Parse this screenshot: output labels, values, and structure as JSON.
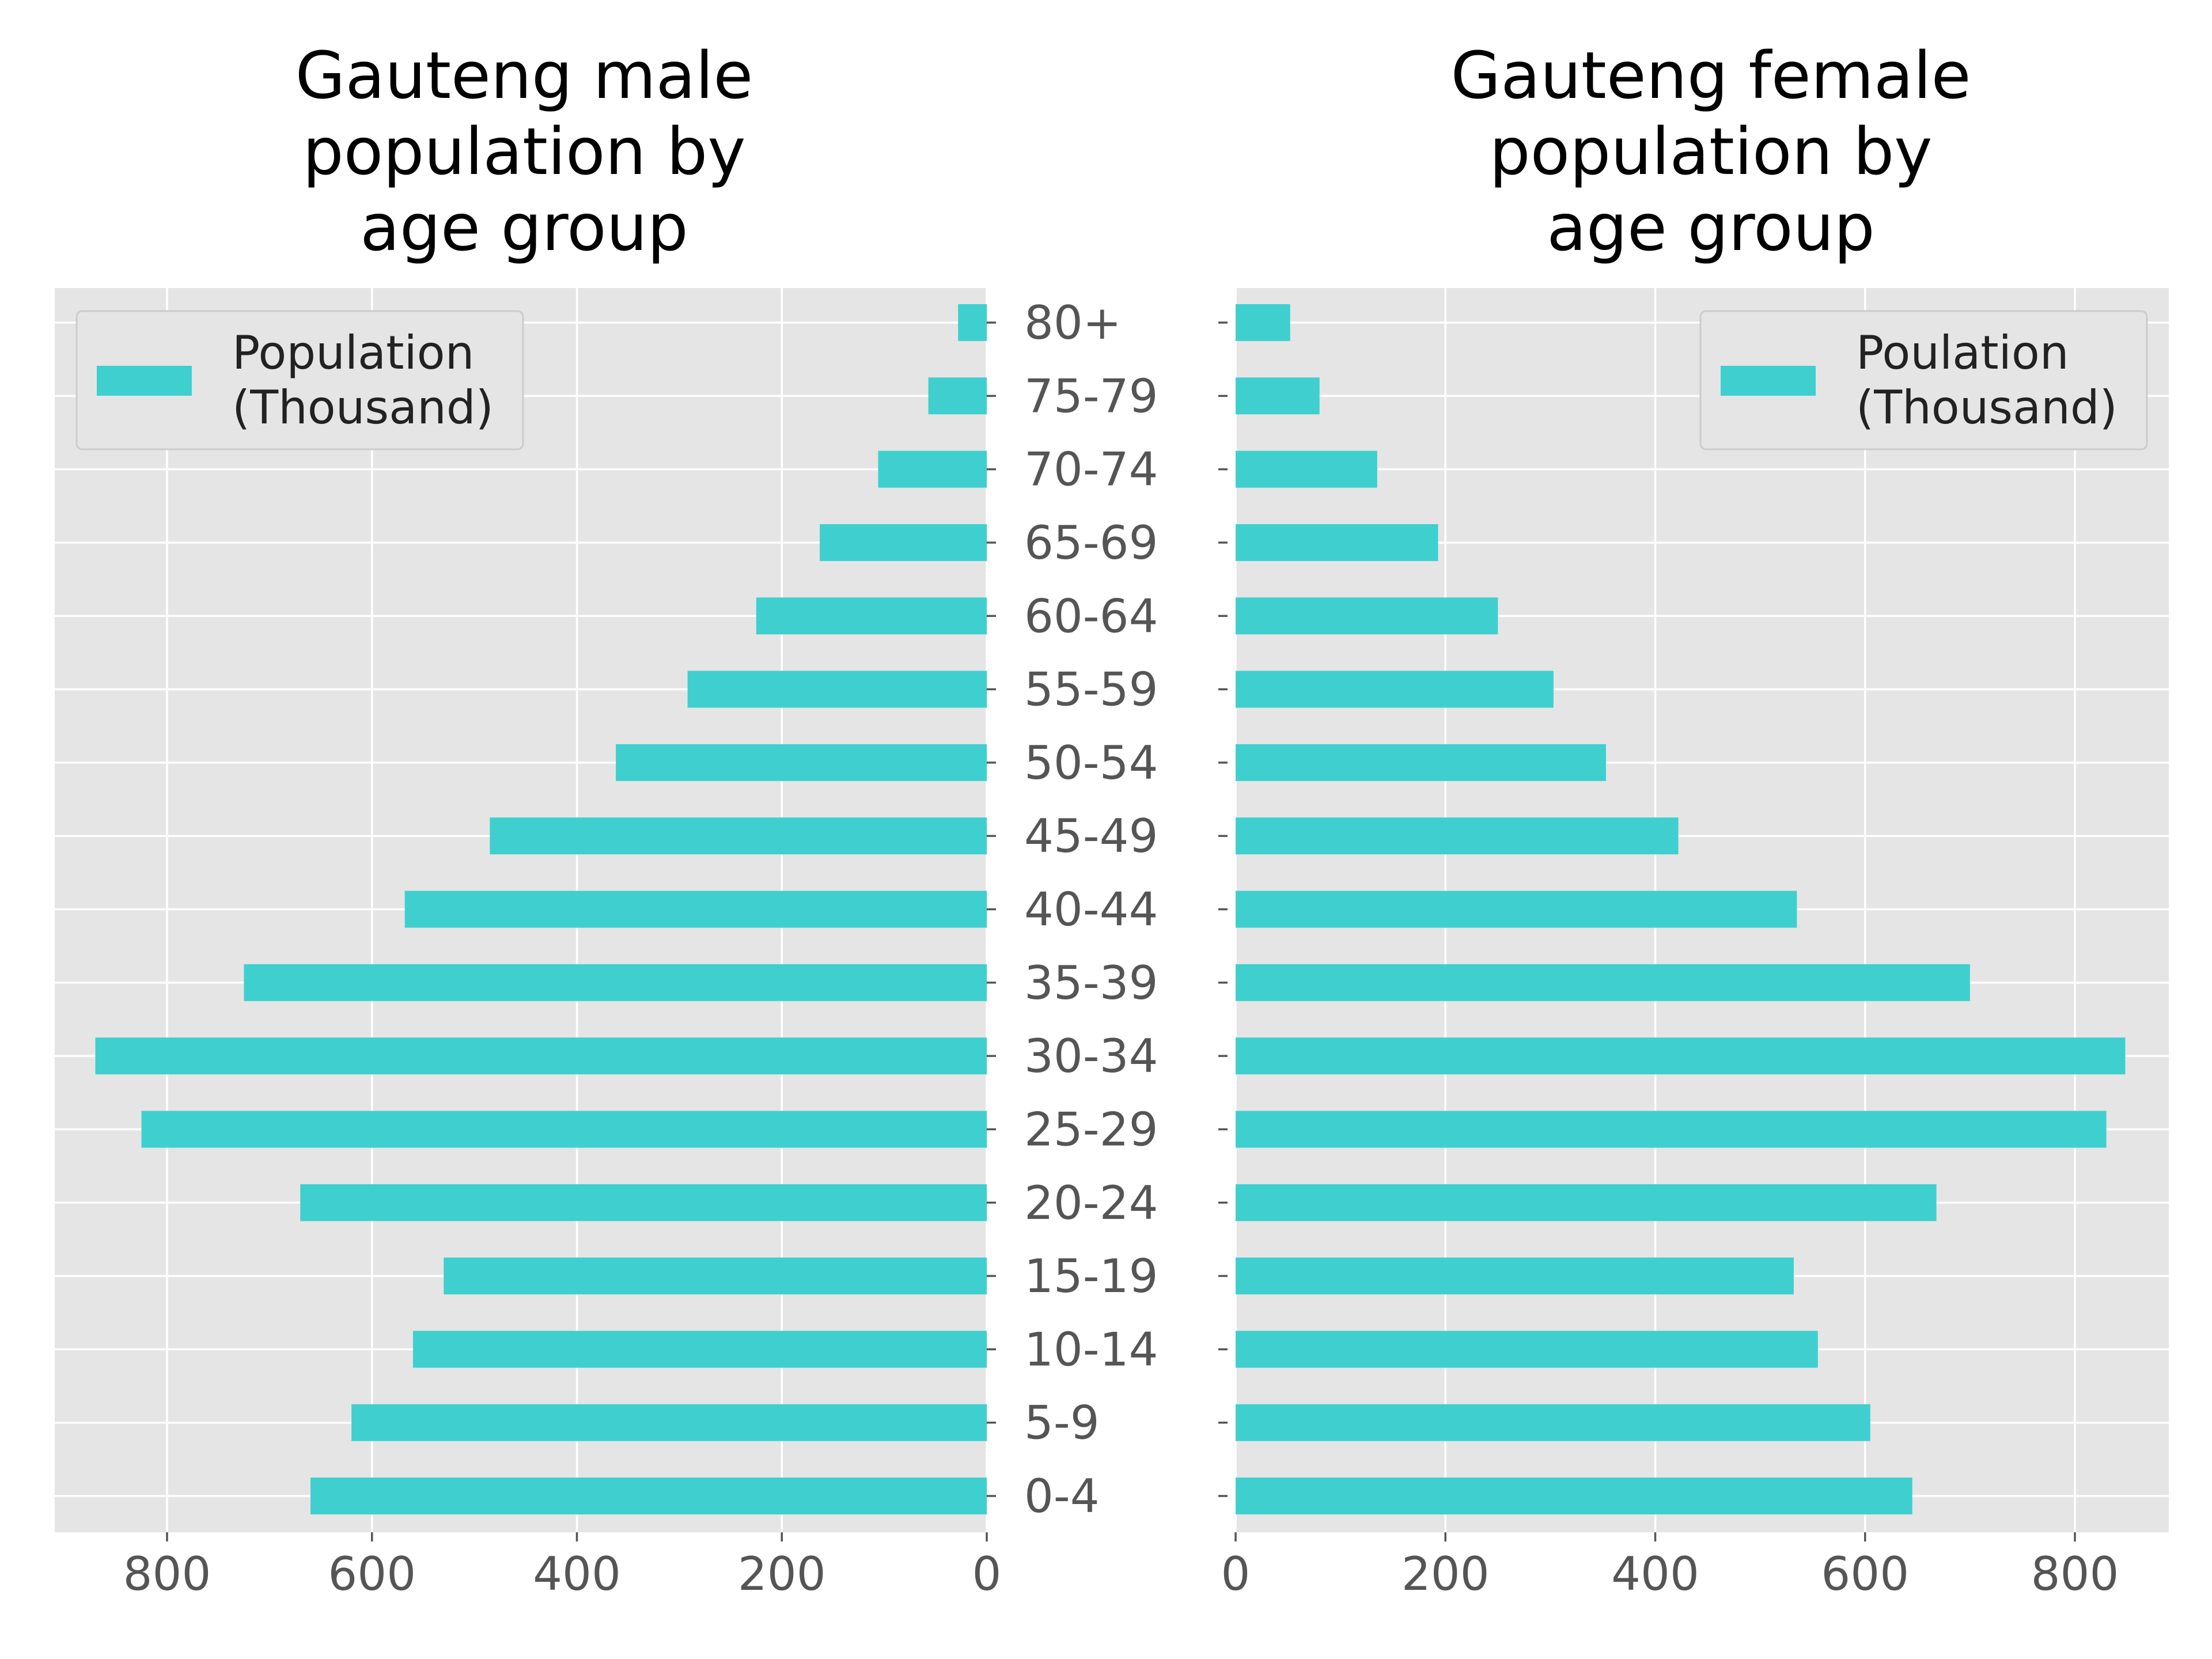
{
  "chart_data": [
    {
      "type": "bar",
      "orientation": "horizontal",
      "title": "Gauteng male\npopulation by\nage group",
      "categories": [
        "0-4",
        "5-9",
        "10-14",
        "15-19",
        "20-24",
        "25-29",
        "30-34",
        "35-39",
        "40-44",
        "45-49",
        "50-54",
        "55-59",
        "60-64",
        "65-69",
        "70-74",
        "75-79",
        "80+"
      ],
      "series": [
        {
          "name": "Population\n(Thousand)",
          "values": [
            660,
            620,
            560,
            530,
            670,
            825,
            870,
            725,
            568,
            485,
            362,
            292,
            225,
            163,
            106,
            57,
            28
          ]
        }
      ],
      "xlim": [
        0,
        900
      ],
      "x_inverted": true,
      "xticks": [
        "0",
        "200",
        "400",
        "600",
        "800"
      ],
      "legend_position": "top-left",
      "grid": true,
      "color": "#3fcfcf"
    },
    {
      "type": "bar",
      "orientation": "horizontal",
      "title": "Gauteng female\npopulation by\nage group",
      "categories": [
        "0-4",
        "5-9",
        "10-14",
        "15-19",
        "20-24",
        "25-29",
        "30-34",
        "35-39",
        "40-44",
        "45-49",
        "50-54",
        "55-59",
        "60-64",
        "65-69",
        "70-74",
        "75-79",
        "80+"
      ],
      "series": [
        {
          "name": "Poulation\n(Thousand)",
          "values": [
            645,
            605,
            555,
            532,
            668,
            830,
            848,
            700,
            535,
            422,
            353,
            303,
            250,
            193,
            135,
            80,
            52
          ]
        }
      ],
      "xlim": [
        0,
        890
      ],
      "x_inverted": false,
      "xticks": [
        "0",
        "200",
        "400",
        "600",
        "800"
      ],
      "legend_position": "top-right",
      "grid": true,
      "color": "#3fcfcf"
    }
  ]
}
